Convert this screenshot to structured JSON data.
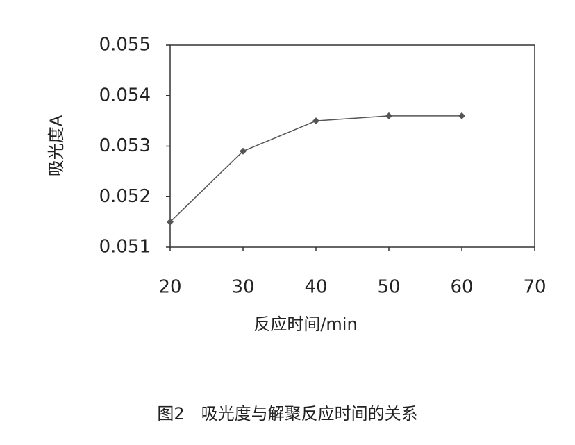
{
  "chart_data": {
    "type": "line",
    "x": [
      20,
      30,
      40,
      50,
      60
    ],
    "values": [
      0.0515,
      0.0529,
      0.0535,
      0.0536,
      0.0536
    ],
    "color": "#555555",
    "marker": "diamond",
    "xlim": [
      20,
      70
    ],
    "xticks": [
      20,
      30,
      40,
      50,
      60,
      70
    ],
    "ylim": [
      0.051,
      0.055
    ],
    "yticks": [
      0.051,
      0.052,
      0.053,
      0.054,
      0.055
    ],
    "grid": false,
    "xlabel": "反应时间/min",
    "ylabel": "吸光度A",
    "caption": "图2　吸光度与解聚反应时间的关系"
  }
}
